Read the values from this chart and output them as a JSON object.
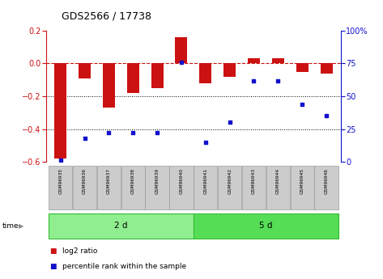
{
  "title": "GDS2566 / 17738",
  "samples": [
    "GSM96935",
    "GSM96936",
    "GSM96937",
    "GSM96938",
    "GSM96939",
    "GSM96940",
    "GSM96941",
    "GSM96942",
    "GSM96943",
    "GSM96944",
    "GSM96945",
    "GSM96946"
  ],
  "log2_ratio": [
    -0.58,
    -0.09,
    -0.27,
    -0.18,
    -0.15,
    0.16,
    -0.12,
    -0.08,
    0.03,
    0.03,
    -0.05,
    -0.06
  ],
  "percentile_rank": [
    1,
    18,
    22,
    22,
    22,
    76,
    15,
    30,
    62,
    62,
    44,
    35
  ],
  "groups": [
    {
      "label": "2 d",
      "start": 0,
      "end": 6,
      "color": "#90EE90"
    },
    {
      "label": "5 d",
      "start": 6,
      "end": 12,
      "color": "#55DD55"
    }
  ],
  "bar_color": "#CC1111",
  "point_color": "#1111CC",
  "ylim_left": [
    -0.6,
    0.2
  ],
  "ylim_right": [
    0,
    100
  ],
  "yticks_left": [
    -0.6,
    -0.4,
    -0.2,
    0.0,
    0.2
  ],
  "yticks_right": [
    0,
    25,
    50,
    75,
    100
  ],
  "dotted_lines": [
    -0.2,
    -0.4
  ],
  "bar_width": 0.5,
  "time_label": "time"
}
